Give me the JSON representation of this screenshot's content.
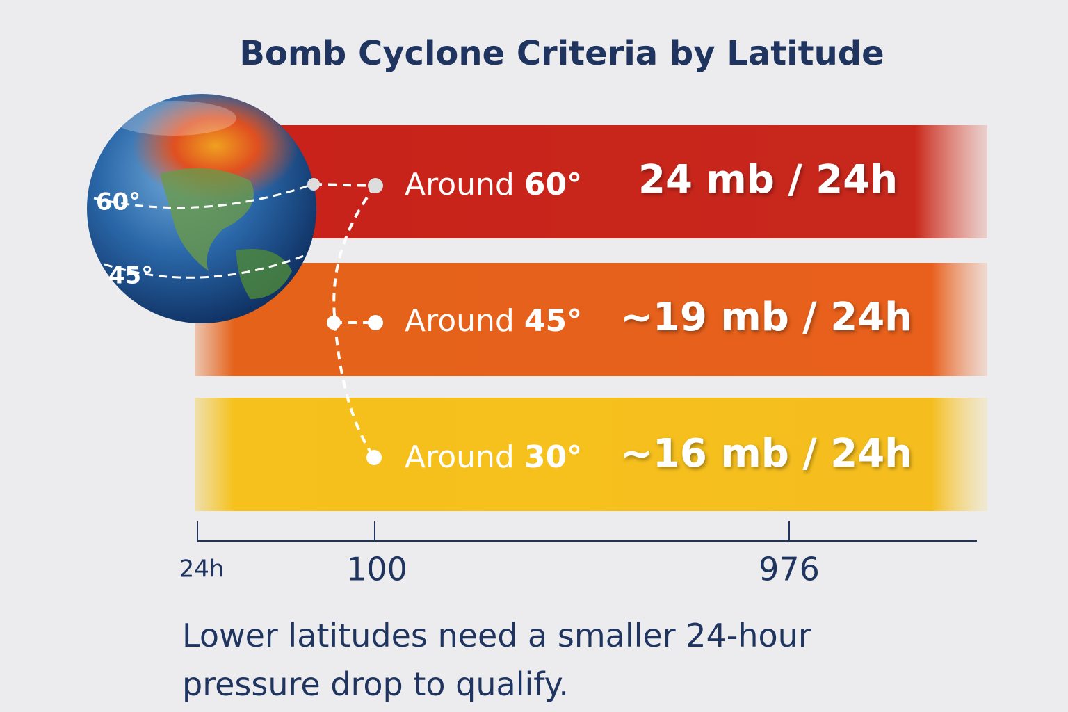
{
  "title": "Bomb Cyclone Criteria by Latitude",
  "globe": {
    "labels": [
      "60°",
      "45°"
    ]
  },
  "rows": [
    {
      "prefix": "Around",
      "latitude": "60°",
      "threshold": "24 mb / 24h"
    },
    {
      "prefix": "Around",
      "latitude": "45°",
      "threshold": "~19 mb / 24h"
    },
    {
      "prefix": "Around",
      "latitude": "30°",
      "threshold": "~16 mb / 24h"
    }
  ],
  "axis": {
    "labels": [
      "24h",
      "100",
      "976"
    ]
  },
  "footer": {
    "lines": [
      "Lower latitudes need a smaller 24-hour",
      "pressure drop to qualify."
    ]
  }
}
